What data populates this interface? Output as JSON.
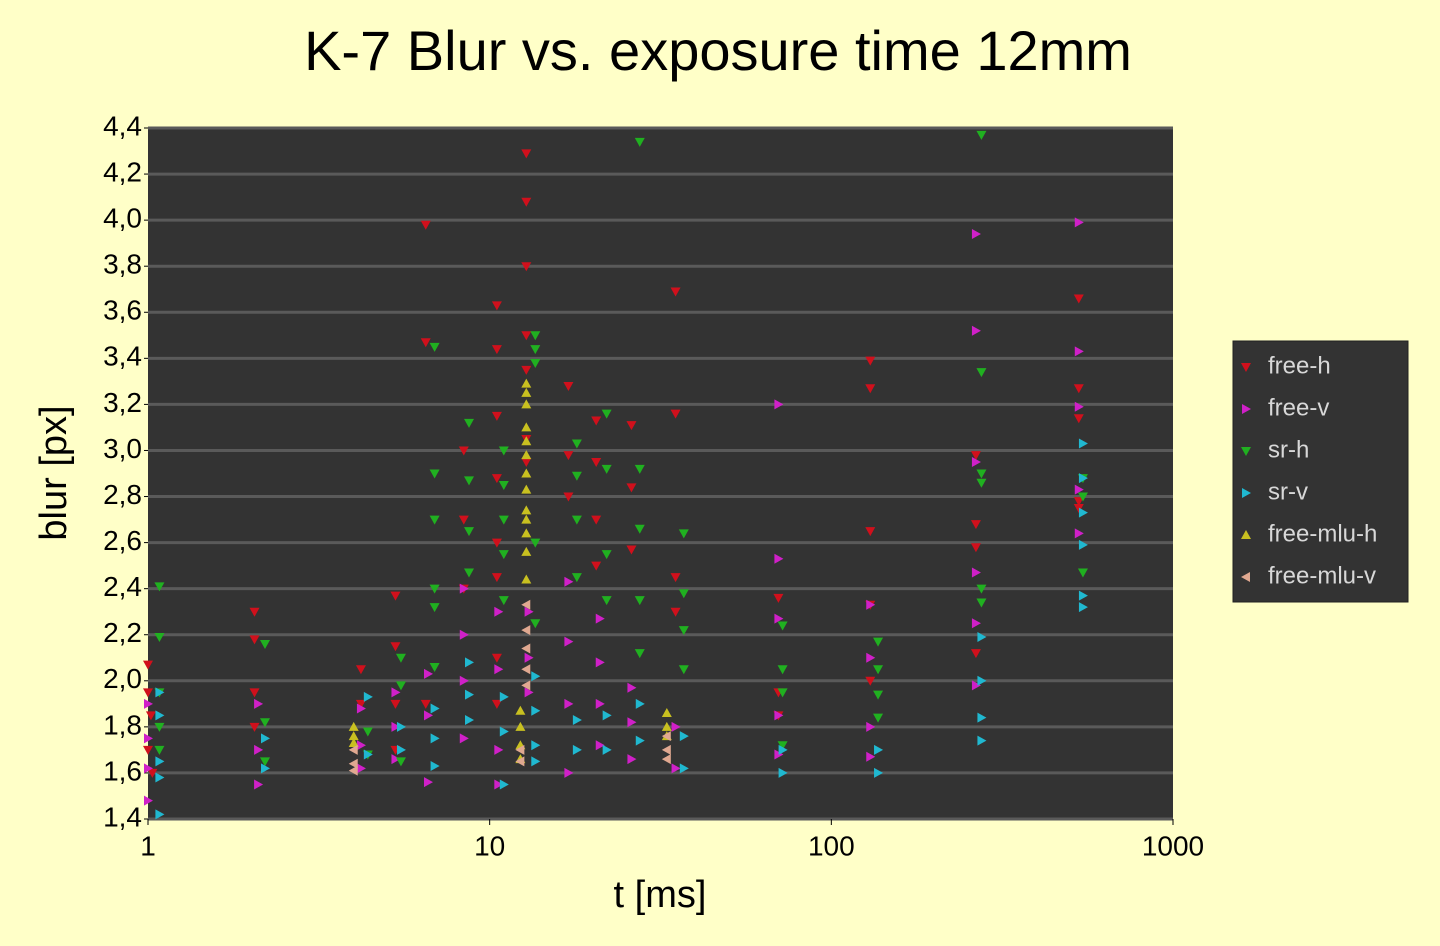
{
  "chart_data": {
    "type": "scatter",
    "title": "K-7 Blur vs. exposure time 12mm",
    "x_label": "t [ms]",
    "y_label": "blur [px]",
    "x_log": true,
    "grid": true,
    "legend": "right",
    "xlim": [
      1,
      1000
    ],
    "xticks": [
      1,
      10,
      100,
      1000
    ],
    "ylim": [
      1.4,
      4.4
    ],
    "yticks": [
      {
        "value": 1.4,
        "label": "1,4"
      },
      {
        "value": 1.6,
        "label": "1,6"
      },
      {
        "value": 1.8,
        "label": "1,8"
      },
      {
        "value": 2.0,
        "label": "2,0"
      },
      {
        "value": 2.2,
        "label": "2,2"
      },
      {
        "value": 2.4,
        "label": "2,4"
      },
      {
        "value": 2.6,
        "label": "2,6"
      },
      {
        "value": 2.8,
        "label": "2,8"
      },
      {
        "value": 3.0,
        "label": "3,0"
      },
      {
        "value": 3.2,
        "label": "3,2"
      },
      {
        "value": 3.4,
        "label": "3,4"
      },
      {
        "value": 3.6,
        "label": "3,6"
      },
      {
        "value": 3.8,
        "label": "3,8"
      },
      {
        "value": 4.0,
        "label": "4,0"
      },
      {
        "value": 4.2,
        "label": "4,2"
      },
      {
        "value": 4.4,
        "label": "4,4"
      }
    ],
    "series": [
      {
        "name": "free-h",
        "color": "#d0101c",
        "marker": "down",
        "x": [
          1.0,
          1.0,
          1.02,
          1.0,
          1.03,
          2.05,
          2.05,
          2.05,
          2.05,
          4.2,
          4.2,
          5.3,
          5.3,
          5.3,
          5.3,
          6.5,
          6.5,
          6.5,
          8.4,
          8.4,
          8.4,
          10.5,
          10.5,
          10.5,
          10.5,
          10.5,
          10.5,
          10.5,
          10.5,
          12.8,
          12.8,
          12.8,
          12.8,
          12.8,
          12.8,
          12.8,
          17,
          17,
          17,
          20.5,
          20.5,
          20.5,
          20.5,
          26,
          26,
          26,
          35,
          35,
          35,
          35,
          70,
          70,
          70,
          130,
          130,
          130,
          130,
          130,
          265,
          265,
          265,
          265,
          530,
          530,
          530,
          530,
          530
        ],
        "values": [
          2.07,
          1.95,
          1.85,
          1.7,
          1.6,
          2.3,
          2.18,
          1.95,
          1.8,
          2.05,
          1.9,
          2.37,
          2.15,
          1.9,
          1.7,
          3.98,
          3.47,
          1.9,
          3.0,
          2.7,
          2.4,
          3.63,
          3.44,
          3.15,
          2.88,
          2.6,
          2.45,
          2.1,
          1.9,
          4.29,
          4.08,
          3.8,
          3.5,
          3.35,
          3.05,
          2.95,
          3.28,
          2.98,
          2.8,
          3.13,
          2.95,
          2.7,
          2.5,
          3.11,
          2.84,
          2.57,
          3.69,
          3.16,
          2.45,
          2.3,
          2.36,
          1.95,
          1.85,
          3.39,
          3.27,
          2.65,
          2.33,
          2.0,
          2.98,
          2.68,
          2.58,
          2.12,
          3.66,
          3.27,
          3.14,
          2.78,
          2.75
        ]
      },
      {
        "name": "free-v",
        "color": "#d020c8",
        "marker": "right",
        "x": [
          1.0,
          1.0,
          1.0,
          1.0,
          2.1,
          2.1,
          2.1,
          4.2,
          4.2,
          4.2,
          5.3,
          5.3,
          5.3,
          6.6,
          6.6,
          6.6,
          8.4,
          8.4,
          8.4,
          8.4,
          10.6,
          10.6,
          10.6,
          10.6,
          13,
          13,
          13,
          17,
          17,
          17,
          17,
          21,
          21,
          21,
          21,
          26,
          26,
          26,
          35,
          35,
          70,
          70,
          70,
          70,
          70,
          130,
          130,
          130,
          130,
          265,
          265,
          265,
          265,
          265,
          265,
          530,
          530,
          530,
          530,
          530
        ],
        "values": [
          1.9,
          1.75,
          1.62,
          1.48,
          1.9,
          1.7,
          1.55,
          1.88,
          1.72,
          1.62,
          1.95,
          1.8,
          1.66,
          2.03,
          1.85,
          1.56,
          2.4,
          2.2,
          2.0,
          1.75,
          2.3,
          2.05,
          1.7,
          1.55,
          2.3,
          2.1,
          1.95,
          2.43,
          2.17,
          1.9,
          1.6,
          2.27,
          2.08,
          1.9,
          1.72,
          1.97,
          1.82,
          1.66,
          1.8,
          1.62,
          3.2,
          2.53,
          2.27,
          1.85,
          1.68,
          2.33,
          2.1,
          1.8,
          1.67,
          3.94,
          3.52,
          2.95,
          2.47,
          2.25,
          1.98,
          3.99,
          3.43,
          3.19,
          2.83,
          2.64
        ]
      },
      {
        "name": "sr-h",
        "color": "#20b020",
        "marker": "down",
        "x": [
          1.08,
          1.08,
          1.08,
          1.08,
          1.08,
          2.2,
          2.2,
          2.2,
          4.4,
          4.4,
          5.5,
          5.5,
          5.5,
          6.9,
          6.9,
          6.9,
          6.9,
          6.9,
          6.9,
          8.7,
          8.7,
          8.7,
          8.7,
          11,
          11,
          11,
          11,
          11,
          13.6,
          13.6,
          13.6,
          13.6,
          13.6,
          18,
          18,
          18,
          18,
          22,
          22,
          22,
          22,
          27.5,
          27.5,
          27.5,
          27.5,
          27.5,
          37,
          37,
          37,
          37,
          72,
          72,
          72,
          72,
          137,
          137,
          137,
          137,
          275,
          275,
          275,
          275,
          275,
          275,
          545,
          545,
          545
        ],
        "values": [
          2.41,
          2.19,
          1.95,
          1.8,
          1.7,
          2.16,
          1.82,
          1.65,
          1.78,
          1.68,
          2.1,
          1.98,
          1.65,
          3.45,
          2.9,
          2.7,
          2.4,
          2.32,
          2.06,
          3.12,
          2.87,
          2.65,
          2.47,
          3.0,
          2.85,
          2.7,
          2.55,
          2.35,
          3.5,
          3.44,
          3.38,
          2.6,
          2.25,
          3.03,
          2.89,
          2.7,
          2.45,
          3.16,
          2.92,
          2.55,
          2.35,
          4.34,
          2.92,
          2.66,
          2.35,
          2.12,
          2.64,
          2.38,
          2.22,
          2.05,
          2.24,
          2.05,
          1.95,
          1.72,
          2.17,
          2.05,
          1.94,
          1.84,
          4.37,
          3.34,
          2.9,
          2.86,
          2.4,
          2.34,
          2.88,
          2.8,
          2.47
        ]
      },
      {
        "name": "sr-v",
        "color": "#20b8d0",
        "marker": "right",
        "x": [
          1.08,
          1.08,
          1.08,
          1.08,
          1.08,
          2.2,
          2.2,
          4.4,
          4.4,
          5.5,
          5.5,
          6.9,
          6.9,
          6.9,
          8.7,
          8.7,
          8.7,
          11,
          11,
          11,
          13.6,
          13.6,
          13.6,
          13.6,
          18,
          18,
          22,
          22,
          27.5,
          27.5,
          37,
          37,
          72,
          72,
          137,
          137,
          275,
          275,
          275,
          275,
          545,
          545,
          545,
          545,
          545,
          545
        ],
        "values": [
          1.95,
          1.85,
          1.65,
          1.58,
          1.42,
          1.75,
          1.62,
          1.93,
          1.68,
          1.8,
          1.7,
          1.88,
          1.75,
          1.63,
          2.08,
          1.94,
          1.83,
          1.93,
          1.78,
          1.55,
          2.02,
          1.87,
          1.72,
          1.65,
          1.83,
          1.7,
          1.85,
          1.7,
          1.9,
          1.74,
          1.76,
          1.62,
          1.7,
          1.6,
          1.7,
          1.6,
          2.19,
          2.0,
          1.84,
          1.74,
          3.03,
          2.88,
          2.73,
          2.59,
          2.37,
          2.32
        ]
      },
      {
        "name": "free-mlu-h",
        "color": "#c8c020",
        "marker": "up",
        "x": [
          4.0,
          4.0,
          4.0,
          12.3,
          12.3,
          12.3,
          12.3,
          12.8,
          12.8,
          12.8,
          12.8,
          12.8,
          12.8,
          12.8,
          12.8,
          12.8,
          12.8,
          12.8,
          12.8,
          12.8,
          33,
          33,
          33
        ],
        "values": [
          1.8,
          1.76,
          1.73,
          1.87,
          1.8,
          1.72,
          1.66,
          3.29,
          3.25,
          3.2,
          3.1,
          3.04,
          2.98,
          2.9,
          2.83,
          2.74,
          2.7,
          2.64,
          2.56,
          2.44,
          1.86,
          1.8,
          1.76
        ]
      },
      {
        "name": "free-mlu-v",
        "color": "#e0a890",
        "marker": "left",
        "x": [
          4.0,
          4.0,
          4.0,
          12.3,
          12.3,
          12.8,
          12.8,
          12.8,
          12.8,
          12.8,
          33,
          33,
          33
        ],
        "values": [
          1.7,
          1.64,
          1.61,
          1.7,
          1.65,
          2.33,
          2.22,
          2.14,
          2.05,
          1.98,
          1.76,
          1.7,
          1.66
        ]
      }
    ]
  }
}
